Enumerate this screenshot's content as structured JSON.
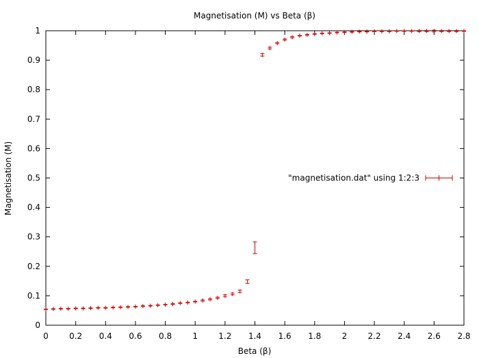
{
  "chart_data": {
    "type": "scatter",
    "title": "Magnetisation (M) vs Beta (β)",
    "xlabel": "Beta (β)",
    "ylabel": "Magnetisation (M)",
    "xlim": [
      0,
      2.8
    ],
    "ylim": [
      0,
      1
    ],
    "xticks": [
      "0",
      "0.2",
      "0.4",
      "0.6",
      "0.8",
      "1",
      "1.2",
      "1.4",
      "1.6",
      "1.8",
      "2",
      "2.2",
      "2.4",
      "2.6",
      "2.8"
    ],
    "yticks": [
      "0",
      "0.1",
      "0.2",
      "0.3",
      "0.4",
      "0.5",
      "0.6",
      "0.7",
      "0.8",
      "0.9",
      "1"
    ],
    "grid": false,
    "legend_position": "right",
    "colors": {
      "series": "#cc0000",
      "axes": "#000000"
    },
    "series": [
      {
        "name": "\"magnetisation.dat\" using 1:2:3",
        "x": [
          0,
          0.05,
          0.1,
          0.15,
          0.2,
          0.25,
          0.3,
          0.35,
          0.4,
          0.45,
          0.5,
          0.55,
          0.6,
          0.65,
          0.7,
          0.75,
          0.8,
          0.85,
          0.9,
          0.95,
          1.0,
          1.05,
          1.1,
          1.15,
          1.2,
          1.25,
          1.3,
          1.35,
          1.4,
          1.45,
          1.5,
          1.55,
          1.6,
          1.65,
          1.7,
          1.75,
          1.8,
          1.85,
          1.9,
          1.95,
          2.0,
          2.05,
          2.1,
          2.15,
          2.2,
          2.25,
          2.3,
          2.35,
          2.4,
          2.45,
          2.5,
          2.55,
          2.6,
          2.65,
          2.7,
          2.75,
          2.8
        ],
        "y": [
          0.054,
          0.055,
          0.056,
          0.056,
          0.057,
          0.057,
          0.058,
          0.059,
          0.059,
          0.06,
          0.061,
          0.062,
          0.063,
          0.065,
          0.066,
          0.068,
          0.07,
          0.072,
          0.075,
          0.077,
          0.08,
          0.084,
          0.088,
          0.093,
          0.1,
          0.106,
          0.115,
          0.148,
          0.263,
          0.918,
          0.941,
          0.958,
          0.97,
          0.978,
          0.983,
          0.986,
          0.989,
          0.991,
          0.992,
          0.994,
          0.995,
          0.996,
          0.997,
          0.997,
          0.998,
          0.998,
          0.998,
          0.999,
          0.999,
          0.999,
          0.999,
          0.999,
          0.999,
          0.999,
          0.999,
          0.999,
          0.999
        ],
        "yerr": [
          0.001,
          0.001,
          0.001,
          0.001,
          0.001,
          0.001,
          0.001,
          0.001,
          0.001,
          0.001,
          0.001,
          0.001,
          0.001,
          0.001,
          0.001,
          0.001,
          0.001,
          0.001,
          0.001,
          0.001,
          0.001,
          0.002,
          0.002,
          0.002,
          0.003,
          0.003,
          0.004,
          0.006,
          0.02,
          0.004,
          0.003,
          0.002,
          0.002,
          0.002,
          0.001,
          0.001,
          0.001,
          0.001,
          0.001,
          0.001,
          0.001,
          0.001,
          0.001,
          0.001,
          0.001,
          0.001,
          0.001,
          0.001,
          0.001,
          0.001,
          0.002,
          0.002,
          0.003,
          0.002,
          0.002,
          0.002,
          0.001
        ]
      }
    ]
  }
}
